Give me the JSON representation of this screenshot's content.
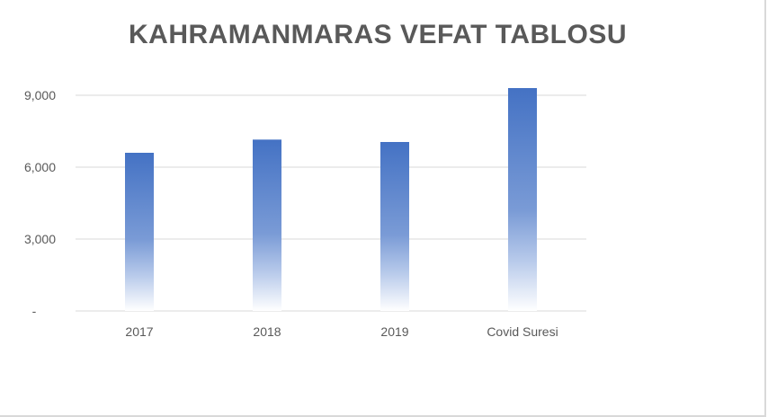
{
  "chart_data": {
    "type": "bar",
    "title": "KAHRAMANMARAS VEFAT TABLOSU",
    "categories": [
      "2017",
      "2018",
      "2019",
      "Covid Suresi"
    ],
    "values": [
      6600,
      7150,
      7050,
      9300
    ],
    "ylim": [
      0,
      9000
    ],
    "yticks": [
      0,
      3000,
      6000,
      9000
    ],
    "ytick_labels": [
      "-",
      "3,000",
      "6,000",
      "9,000"
    ],
    "grid": true,
    "legend": "none",
    "bar_color": "#4472c4"
  }
}
